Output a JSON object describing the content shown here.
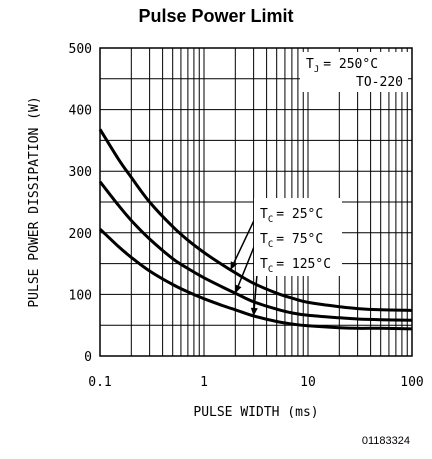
{
  "chart_data": {
    "type": "line",
    "title": "Pulse Power Limit",
    "xlabel": "PULSE WIDTH (ms)",
    "ylabel": "PULSE POWER DISSIPATION (W)",
    "x_scale": "log",
    "xlim": [
      0.1,
      100
    ],
    "ylim": [
      0,
      500
    ],
    "x_ticks": [
      0.1,
      1,
      10,
      100
    ],
    "x_tick_labels": [
      "0.1",
      "1",
      "10",
      "100"
    ],
    "y_ticks": [
      0,
      100,
      200,
      300,
      400,
      500
    ],
    "y_tick_labels": [
      "0",
      "100",
      "200",
      "300",
      "400",
      "500"
    ],
    "grid": true,
    "conditions": {
      "tj_prefix": "T",
      "tj_sub": "J",
      "tj_value": "= 250°C",
      "package": "TO-220"
    },
    "series": [
      {
        "name": "TC = 25°C",
        "label_prefix": "T",
        "label_sub": "C",
        "label_value": "= 25°C",
        "x": [
          0.1,
          0.15,
          0.2,
          0.3,
          0.5,
          0.7,
          1,
          1.5,
          2,
          3,
          5,
          7,
          10,
          20,
          30,
          50,
          100
        ],
        "values": [
          368,
          320,
          290,
          250,
          210,
          188,
          168,
          148,
          135,
          118,
          102,
          94,
          87,
          80,
          77,
          75,
          74
        ]
      },
      {
        "name": "TC = 75°C",
        "label_prefix": "T",
        "label_sub": "C",
        "label_value": "= 75°C",
        "x": [
          0.1,
          0.15,
          0.2,
          0.3,
          0.5,
          0.7,
          1,
          1.5,
          2,
          3,
          5,
          7,
          10,
          20,
          30,
          50,
          100
        ],
        "values": [
          283,
          245,
          220,
          190,
          158,
          142,
          127,
          112,
          102,
          88,
          76,
          70,
          66,
          62,
          60,
          59,
          58
        ]
      },
      {
        "name": "TC = 125°C",
        "label_prefix": "T",
        "label_sub": "C",
        "label_value": "= 125°C",
        "x": [
          0.1,
          0.15,
          0.2,
          0.3,
          0.5,
          0.7,
          1,
          1.5,
          2,
          3,
          5,
          7,
          10,
          20,
          30,
          50,
          100
        ],
        "values": [
          206,
          178,
          160,
          138,
          116,
          104,
          93,
          82,
          75,
          65,
          56,
          52,
          49,
          46,
          45,
          45,
          44
        ]
      }
    ]
  },
  "figure_code": "01183324"
}
